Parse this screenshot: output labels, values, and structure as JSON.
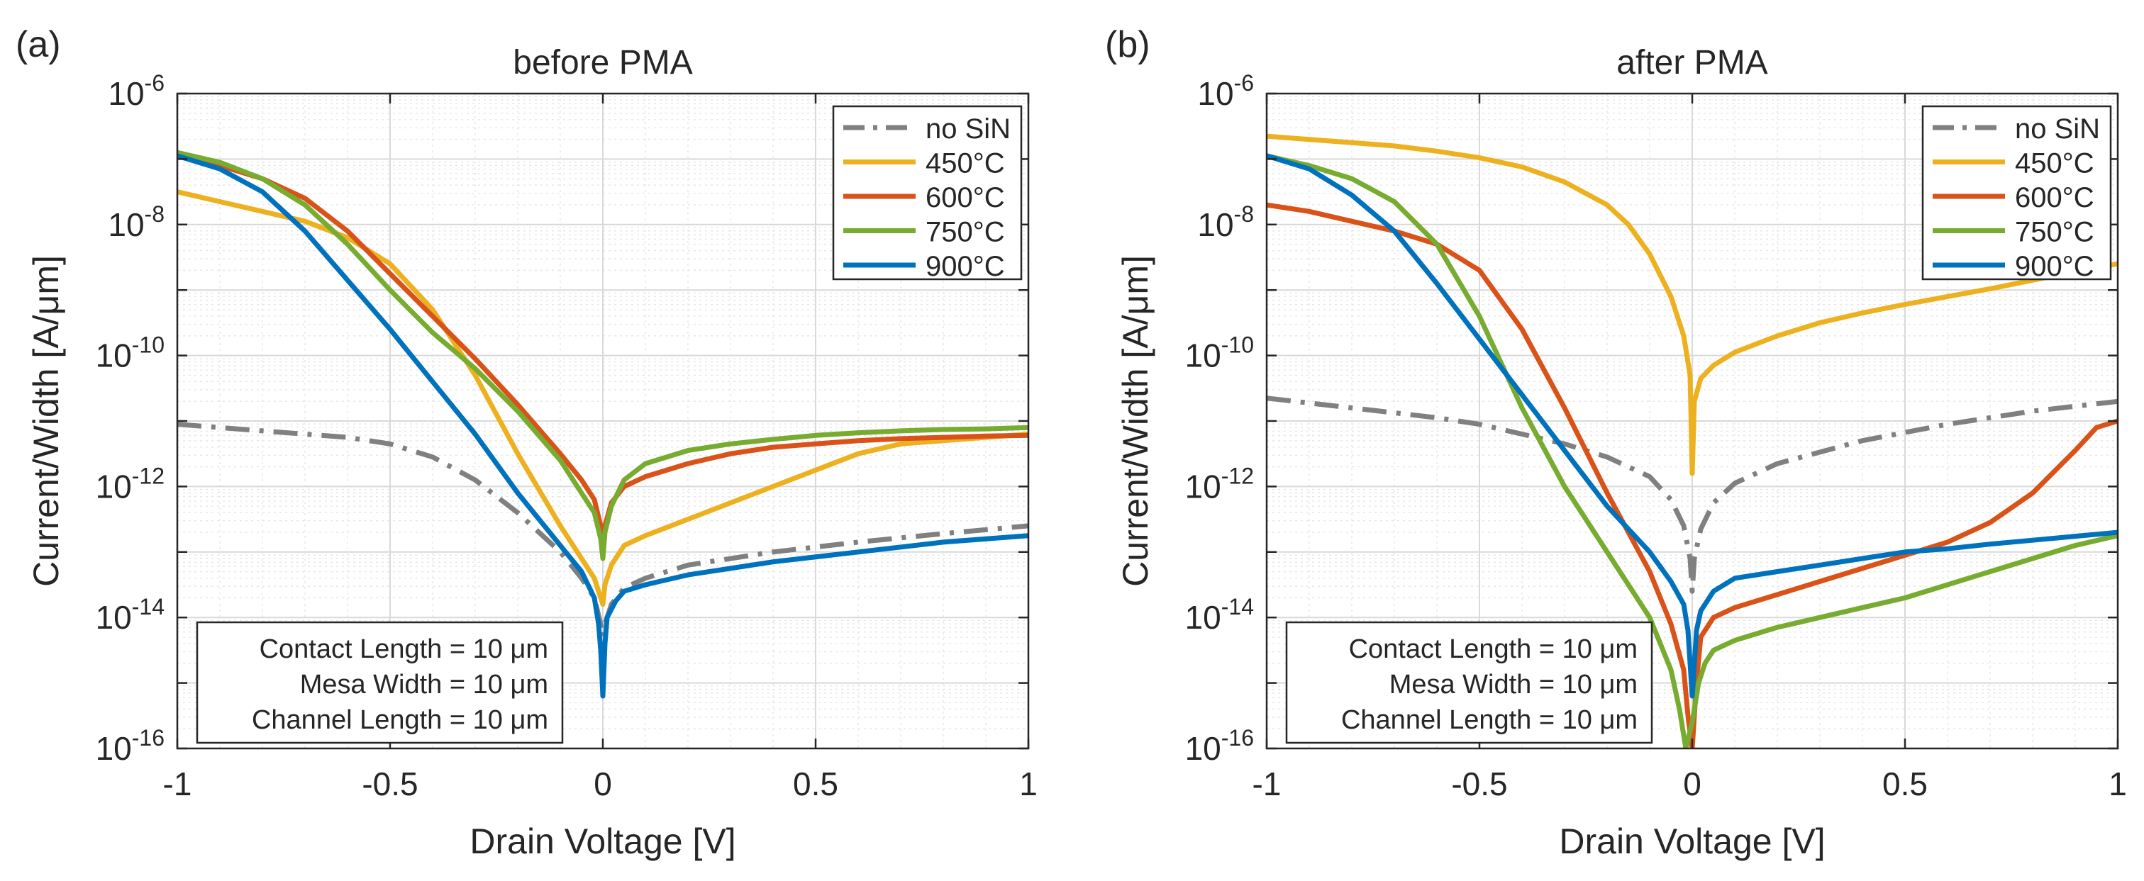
{
  "chart_data": [
    {
      "type": "line",
      "panel_label": "(a)",
      "title": "before PMA",
      "xlabel": "Drain Voltage [V]",
      "ylabel": "Current/Width [A/μm]",
      "xlim": [
        -1,
        1
      ],
      "ylim_log10": [
        -16,
        -6
      ],
      "yscale": "log",
      "grid": true,
      "legend_position": "top-right",
      "xticks": [
        "-1",
        "-0.5",
        "0",
        "0.5",
        "1"
      ],
      "yticks": [
        "-16",
        "-14",
        "-12",
        "-10",
        "-8",
        "-6"
      ],
      "annotation": [
        "Contact Length = 10 μm",
        "Mesa Width = 10 μm",
        "Channel Length = 10 μm"
      ],
      "series": [
        {
          "name": "no SiN",
          "color": "#808080",
          "dash": "dashdot",
          "x": [
            -1,
            -0.8,
            -0.6,
            -0.5,
            -0.4,
            -0.3,
            -0.2,
            -0.1,
            -0.05,
            -0.02,
            -0.005,
            0,
            0.005,
            0.02,
            0.05,
            0.1,
            0.2,
            0.4,
            0.6,
            0.8,
            1
          ],
          "log10_y": [
            -11.05,
            -11.15,
            -11.25,
            -11.35,
            -11.55,
            -11.9,
            -12.4,
            -13.0,
            -13.4,
            -13.7,
            -14.1,
            -14.3,
            -14.1,
            -13.8,
            -13.55,
            -13.4,
            -13.2,
            -13.0,
            -12.85,
            -12.72,
            -12.6
          ]
        },
        {
          "name": "450°C",
          "color": "#EDB120",
          "dash": "solid",
          "x": [
            -1,
            -0.9,
            -0.8,
            -0.7,
            -0.6,
            -0.5,
            -0.4,
            -0.3,
            -0.2,
            -0.1,
            -0.05,
            -0.02,
            -0.005,
            0,
            0.005,
            0.02,
            0.05,
            0.1,
            0.2,
            0.3,
            0.4,
            0.5,
            0.6,
            0.7,
            0.8,
            0.9,
            1
          ],
          "log10_y": [
            -7.5,
            -7.65,
            -7.8,
            -7.95,
            -8.2,
            -8.6,
            -9.3,
            -10.3,
            -11.5,
            -12.6,
            -13.1,
            -13.4,
            -13.7,
            -13.8,
            -13.5,
            -13.2,
            -12.9,
            -12.75,
            -12.5,
            -12.25,
            -12.0,
            -11.75,
            -11.5,
            -11.35,
            -11.3,
            -11.25,
            -11.2
          ]
        },
        {
          "name": "600°C",
          "color": "#D95319",
          "dash": "solid",
          "x": [
            -1,
            -0.9,
            -0.8,
            -0.7,
            -0.6,
            -0.5,
            -0.4,
            -0.3,
            -0.2,
            -0.1,
            -0.05,
            -0.02,
            -0.005,
            0,
            0.005,
            0.02,
            0.05,
            0.1,
            0.2,
            0.3,
            0.4,
            0.5,
            0.6,
            0.7,
            0.8,
            0.9,
            1
          ],
          "log10_y": [
            -6.95,
            -7.1,
            -7.3,
            -7.6,
            -8.1,
            -8.75,
            -9.4,
            -10.05,
            -10.75,
            -11.5,
            -11.9,
            -12.2,
            -12.6,
            -13.0,
            -12.6,
            -12.25,
            -12.0,
            -11.85,
            -11.65,
            -11.5,
            -11.4,
            -11.35,
            -11.3,
            -11.27,
            -11.25,
            -11.23,
            -11.22
          ]
        },
        {
          "name": "750°C",
          "color": "#77AC30",
          "dash": "solid",
          "x": [
            -1,
            -0.9,
            -0.8,
            -0.7,
            -0.6,
            -0.5,
            -0.4,
            -0.3,
            -0.2,
            -0.1,
            -0.05,
            -0.02,
            -0.005,
            0,
            0.005,
            0.02,
            0.05,
            0.1,
            0.2,
            0.3,
            0.4,
            0.5,
            0.6,
            0.7,
            0.8,
            0.9,
            1
          ],
          "log10_y": [
            -6.9,
            -7.05,
            -7.3,
            -7.7,
            -8.3,
            -9.0,
            -9.65,
            -10.2,
            -10.85,
            -11.6,
            -12.1,
            -12.4,
            -12.8,
            -13.1,
            -12.7,
            -12.3,
            -11.9,
            -11.65,
            -11.45,
            -11.35,
            -11.28,
            -11.22,
            -11.18,
            -11.15,
            -11.13,
            -11.12,
            -11.1
          ]
        },
        {
          "name": "900°C",
          "color": "#0072BD",
          "dash": "solid",
          "x": [
            -1,
            -0.9,
            -0.8,
            -0.7,
            -0.6,
            -0.5,
            -0.4,
            -0.3,
            -0.2,
            -0.1,
            -0.05,
            -0.02,
            -0.01,
            -0.005,
            0,
            0.005,
            0.01,
            0.03,
            0.05,
            0.1,
            0.2,
            0.4,
            0.6,
            0.8,
            1
          ],
          "log10_y": [
            -6.95,
            -7.15,
            -7.5,
            -8.1,
            -8.85,
            -9.6,
            -10.4,
            -11.2,
            -12.1,
            -12.9,
            -13.3,
            -13.7,
            -14.1,
            -14.5,
            -15.2,
            -14.4,
            -14.0,
            -13.75,
            -13.6,
            -13.5,
            -13.35,
            -13.15,
            -13.0,
            -12.85,
            -12.75
          ]
        }
      ]
    },
    {
      "type": "line",
      "panel_label": "(b)",
      "title": "after PMA",
      "xlabel": "Drain Voltage [V]",
      "ylabel": "Current/Width [A/μm]",
      "xlim": [
        -1,
        1
      ],
      "ylim_log10": [
        -16,
        -6
      ],
      "yscale": "log",
      "grid": true,
      "legend_position": "top-right",
      "xticks": [
        "-1",
        "-0.5",
        "0",
        "0.5",
        "1"
      ],
      "yticks": [
        "-16",
        "-14",
        "-12",
        "-10",
        "-8",
        "-6"
      ],
      "annotation": [
        "Contact Length = 10 μm",
        "Mesa Width = 10 μm",
        "Channel Length = 10 μm"
      ],
      "series": [
        {
          "name": "no SiN",
          "color": "#808080",
          "dash": "dashdot",
          "x": [
            -1,
            -0.8,
            -0.6,
            -0.5,
            -0.4,
            -0.3,
            -0.2,
            -0.1,
            -0.05,
            -0.02,
            -0.005,
            0,
            0.005,
            0.02,
            0.05,
            0.1,
            0.2,
            0.4,
            0.6,
            0.8,
            1
          ],
          "log10_y": [
            -10.65,
            -10.8,
            -10.95,
            -11.05,
            -11.2,
            -11.35,
            -11.55,
            -11.85,
            -12.2,
            -12.6,
            -13.1,
            -13.6,
            -13.1,
            -12.65,
            -12.25,
            -11.95,
            -11.65,
            -11.3,
            -11.05,
            -10.85,
            -10.7
          ]
        },
        {
          "name": "450°C",
          "color": "#EDB120",
          "dash": "solid",
          "x": [
            -1,
            -0.9,
            -0.8,
            -0.7,
            -0.6,
            -0.5,
            -0.4,
            -0.3,
            -0.2,
            -0.15,
            -0.1,
            -0.05,
            -0.02,
            -0.005,
            0,
            0.005,
            0.02,
            0.05,
            0.1,
            0.2,
            0.3,
            0.4,
            0.5,
            0.6,
            0.7,
            0.8,
            0.9,
            1
          ],
          "log10_y": [
            -6.65,
            -6.7,
            -6.75,
            -6.8,
            -6.88,
            -6.98,
            -7.12,
            -7.35,
            -7.7,
            -8.0,
            -8.45,
            -9.1,
            -9.7,
            -10.3,
            -11.8,
            -10.7,
            -10.35,
            -10.15,
            -9.95,
            -9.7,
            -9.5,
            -9.35,
            -9.22,
            -9.1,
            -8.98,
            -8.85,
            -8.72,
            -8.6
          ]
        },
        {
          "name": "600°C",
          "color": "#D95319",
          "dash": "solid",
          "x": [
            -1,
            -0.9,
            -0.8,
            -0.7,
            -0.6,
            -0.5,
            -0.4,
            -0.3,
            -0.2,
            -0.1,
            -0.05,
            -0.02,
            -0.01,
            0,
            0.01,
            0.02,
            0.05,
            0.1,
            0.2,
            0.3,
            0.4,
            0.5,
            0.6,
            0.7,
            0.8,
            0.9,
            0.95,
            1
          ],
          "log10_y": [
            -7.7,
            -7.8,
            -7.95,
            -8.1,
            -8.3,
            -8.7,
            -9.6,
            -10.8,
            -12.1,
            -13.3,
            -14.1,
            -14.8,
            -15.5,
            -16,
            -15.0,
            -14.3,
            -14.0,
            -13.85,
            -13.65,
            -13.45,
            -13.25,
            -13.05,
            -12.85,
            -12.55,
            -12.1,
            -11.45,
            -11.1,
            -11.0
          ]
        },
        {
          "name": "750°C",
          "color": "#77AC30",
          "dash": "solid",
          "x": [
            -1,
            -0.9,
            -0.8,
            -0.7,
            -0.6,
            -0.5,
            -0.4,
            -0.3,
            -0.2,
            -0.1,
            -0.05,
            -0.03,
            -0.015,
            0,
            0.015,
            0.03,
            0.05,
            0.1,
            0.2,
            0.3,
            0.4,
            0.5,
            0.6,
            0.7,
            0.8,
            0.9,
            1
          ],
          "log10_y": [
            -6.95,
            -7.1,
            -7.3,
            -7.65,
            -8.3,
            -9.4,
            -10.8,
            -12.0,
            -13.0,
            -14.0,
            -14.8,
            -15.4,
            -16,
            -15.6,
            -15.0,
            -14.7,
            -14.5,
            -14.35,
            -14.15,
            -14.0,
            -13.85,
            -13.7,
            -13.5,
            -13.3,
            -13.1,
            -12.9,
            -12.75
          ]
        },
        {
          "name": "900°C",
          "color": "#0072BD",
          "dash": "solid",
          "x": [
            -1,
            -0.9,
            -0.8,
            -0.7,
            -0.6,
            -0.5,
            -0.4,
            -0.3,
            -0.2,
            -0.1,
            -0.05,
            -0.02,
            -0.01,
            0,
            0.01,
            0.02,
            0.05,
            0.1,
            0.2,
            0.3,
            0.4,
            0.5,
            0.6,
            0.7,
            0.8,
            0.9,
            1
          ],
          "log10_y": [
            -6.95,
            -7.15,
            -7.55,
            -8.1,
            -8.9,
            -9.75,
            -10.6,
            -11.45,
            -12.3,
            -13.0,
            -13.45,
            -13.8,
            -14.2,
            -15.2,
            -14.2,
            -13.9,
            -13.6,
            -13.4,
            -13.3,
            -13.2,
            -13.1,
            -13.0,
            -12.95,
            -12.88,
            -12.82,
            -12.76,
            -12.7
          ]
        }
      ]
    }
  ]
}
